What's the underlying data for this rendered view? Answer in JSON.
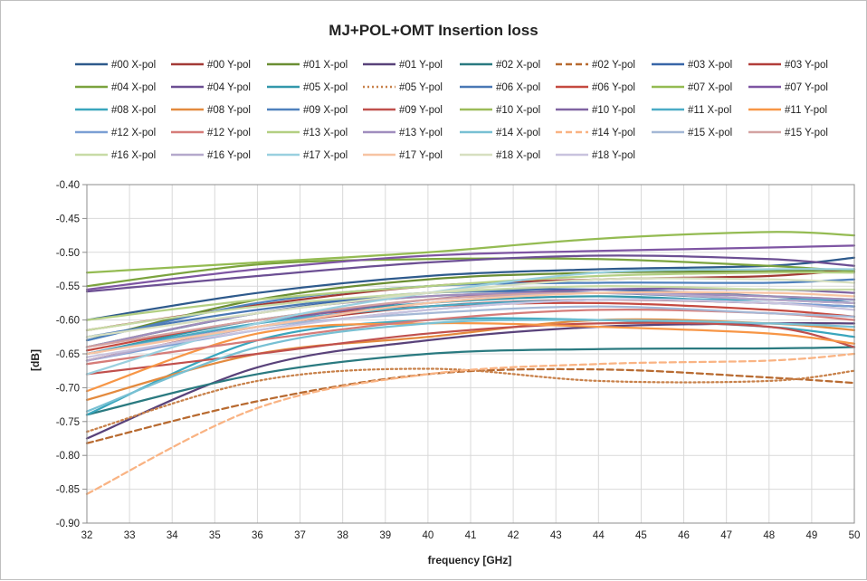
{
  "chart_data": {
    "type": "line",
    "title": "MJ+POL+OMT  Insertion loss",
    "xlabel": "frequency [GHz]",
    "ylabel": "[dB]",
    "xlim": [
      32,
      50
    ],
    "ylim": [
      -0.9,
      -0.4
    ],
    "x_ticks": [
      32,
      33,
      34,
      35,
      36,
      37,
      38,
      39,
      40,
      41,
      42,
      43,
      44,
      45,
      46,
      47,
      48,
      49,
      50
    ],
    "y_ticks": [
      -0.9,
      -0.85,
      -0.8,
      -0.75,
      -0.7,
      -0.65,
      -0.6,
      -0.55,
      -0.5,
      -0.45,
      -0.4
    ],
    "x_tick_labels": [
      "32",
      "33",
      "34",
      "35",
      "36",
      "37",
      "38",
      "39",
      "40",
      "41",
      "42",
      "43",
      "44",
      "45",
      "46",
      "47",
      "48",
      "49",
      "50"
    ],
    "y_tick_labels": [
      "-0.90",
      "-0.85",
      "-0.80",
      "-0.75",
      "-0.70",
      "-0.65",
      "-0.60",
      "-0.55",
      "-0.50",
      "-0.45",
      "-0.40"
    ],
    "grid": true,
    "legend_position": "top",
    "x": [
      32,
      36,
      40,
      44,
      48,
      50
    ],
    "series": [
      {
        "name": "#00 X-pol",
        "color": "#2E5A8C",
        "dash": "solid",
        "values": [
          -0.6,
          -0.56,
          -0.535,
          -0.525,
          -0.52,
          -0.508
        ]
      },
      {
        "name": "#00 Y-pol",
        "color": "#A33A36",
        "dash": "solid",
        "values": [
          -0.615,
          -0.578,
          -0.55,
          -0.54,
          -0.535,
          -0.525
        ]
      },
      {
        "name": "#01 X-pol",
        "color": "#6B8E33",
        "dash": "solid",
        "values": [
          -0.63,
          -0.57,
          -0.54,
          -0.53,
          -0.528,
          -0.525
        ]
      },
      {
        "name": "#01 Y-pol",
        "color": "#59427A",
        "dash": "solid",
        "values": [
          -0.775,
          -0.67,
          -0.63,
          -0.61,
          -0.605,
          -0.605
        ]
      },
      {
        "name": "#02 X-pol",
        "color": "#2A7A80",
        "dash": "solid",
        "values": [
          -0.74,
          -0.68,
          -0.65,
          -0.643,
          -0.642,
          -0.64
        ]
      },
      {
        "name": "#02 Y-pol",
        "color": "#B86A30",
        "dash": "dash",
        "values": [
          -0.782,
          -0.72,
          -0.68,
          -0.673,
          -0.685,
          -0.693
        ]
      },
      {
        "name": "#03 X-pol",
        "color": "#3866A8",
        "dash": "solid",
        "values": [
          -0.64,
          -0.59,
          -0.56,
          -0.555,
          -0.565,
          -0.575
        ]
      },
      {
        "name": "#03 Y-pol",
        "color": "#B23E3A",
        "dash": "solid",
        "values": [
          -0.66,
          -0.61,
          -0.58,
          -0.57,
          -0.575,
          -0.58
        ]
      },
      {
        "name": "#04 X-pol",
        "color": "#7BA33E",
        "dash": "solid",
        "values": [
          -0.55,
          -0.518,
          -0.51,
          -0.51,
          -0.52,
          -0.528
        ]
      },
      {
        "name": "#04 Y-pol",
        "color": "#6C4F93",
        "dash": "solid",
        "values": [
          -0.558,
          -0.535,
          -0.515,
          -0.505,
          -0.51,
          -0.52
        ]
      },
      {
        "name": "#05 X-pol",
        "color": "#3398AB",
        "dash": "solid",
        "values": [
          -0.65,
          -0.6,
          -0.575,
          -0.565,
          -0.575,
          -0.58
        ]
      },
      {
        "name": "#05 Y-pol",
        "color": "#C8814A",
        "dash": "dot",
        "values": [
          -0.765,
          -0.69,
          -0.672,
          -0.69,
          -0.69,
          -0.675
        ]
      },
      {
        "name": "#06 X-pol",
        "color": "#4A78B5",
        "dash": "solid",
        "values": [
          -0.625,
          -0.585,
          -0.56,
          -0.56,
          -0.57,
          -0.575
        ]
      },
      {
        "name": "#06 Y-pol",
        "color": "#C54A40",
        "dash": "solid",
        "values": [
          -0.645,
          -0.6,
          -0.58,
          -0.575,
          -0.585,
          -0.595
        ]
      },
      {
        "name": "#07 X-pol",
        "color": "#94BB52",
        "dash": "solid",
        "values": [
          -0.53,
          -0.515,
          -0.5,
          -0.48,
          -0.47,
          -0.475
        ]
      },
      {
        "name": "#07 Y-pol",
        "color": "#7E55A3",
        "dash": "solid",
        "values": [
          -0.555,
          -0.525,
          -0.505,
          -0.498,
          -0.493,
          -0.49
        ]
      },
      {
        "name": "#08 X-pol",
        "color": "#3AA6BD",
        "dash": "solid",
        "values": [
          -0.74,
          -0.63,
          -0.6,
          -0.6,
          -0.61,
          -0.625
        ]
      },
      {
        "name": "#08 Y-pol",
        "color": "#E38A3E",
        "dash": "solid",
        "values": [
          -0.718,
          -0.65,
          -0.625,
          -0.6,
          -0.605,
          -0.615
        ]
      },
      {
        "name": "#09 X-pol",
        "color": "#4F81BD",
        "dash": "solid",
        "values": [
          -0.63,
          -0.575,
          -0.55,
          -0.545,
          -0.545,
          -0.54
        ]
      },
      {
        "name": "#09 Y-pol",
        "color": "#C0504D",
        "dash": "solid",
        "values": [
          -0.68,
          -0.65,
          -0.62,
          -0.605,
          -0.61,
          -0.64
        ]
      },
      {
        "name": "#10 X-pol",
        "color": "#9BBB59",
        "dash": "solid",
        "values": [
          -0.64,
          -0.59,
          -0.565,
          -0.56,
          -0.565,
          -0.57
        ]
      },
      {
        "name": "#10 Y-pol",
        "color": "#8064A2",
        "dash": "solid",
        "values": [
          -0.65,
          -0.605,
          -0.57,
          -0.555,
          -0.555,
          -0.56
        ]
      },
      {
        "name": "#11 X-pol",
        "color": "#4BACC6",
        "dash": "solid",
        "values": [
          -0.65,
          -0.605,
          -0.58,
          -0.57,
          -0.57,
          -0.57
        ]
      },
      {
        "name": "#11 Y-pol",
        "color": "#F79646",
        "dash": "solid",
        "values": [
          -0.705,
          -0.62,
          -0.605,
          -0.61,
          -0.62,
          -0.635
        ]
      },
      {
        "name": "#12 X-pol",
        "color": "#7B9FD4",
        "dash": "solid",
        "values": [
          -0.66,
          -0.615,
          -0.585,
          -0.57,
          -0.575,
          -0.58
        ]
      },
      {
        "name": "#12 Y-pol",
        "color": "#D67C79",
        "dash": "solid",
        "values": [
          -0.665,
          -0.63,
          -0.6,
          -0.585,
          -0.59,
          -0.6
        ]
      },
      {
        "name": "#13 X-pol",
        "color": "#B3CF82",
        "dash": "solid",
        "values": [
          -0.6,
          -0.57,
          -0.55,
          -0.535,
          -0.53,
          -0.53
        ]
      },
      {
        "name": "#13 Y-pol",
        "color": "#A08DBE",
        "dash": "solid",
        "values": [
          -0.64,
          -0.59,
          -0.565,
          -0.56,
          -0.565,
          -0.57
        ]
      },
      {
        "name": "#14 X-pol",
        "color": "#78C0D3",
        "dash": "solid",
        "values": [
          -0.735,
          -0.64,
          -0.605,
          -0.6,
          -0.605,
          -0.61
        ]
      },
      {
        "name": "#14 Y-pol",
        "color": "#F9B383",
        "dash": "dash",
        "values": [
          -0.857,
          -0.73,
          -0.68,
          -0.665,
          -0.66,
          -0.65
        ]
      },
      {
        "name": "#15 X-pol",
        "color": "#A4B8D6",
        "dash": "solid",
        "values": [
          -0.65,
          -0.61,
          -0.59,
          -0.58,
          -0.59,
          -0.595
        ]
      },
      {
        "name": "#15 Y-pol",
        "color": "#D4A3A2",
        "dash": "solid",
        "values": [
          -0.64,
          -0.6,
          -0.57,
          -0.56,
          -0.57,
          -0.575
        ]
      },
      {
        "name": "#16 X-pol",
        "color": "#C8DBA6",
        "dash": "solid",
        "values": [
          -0.615,
          -0.58,
          -0.56,
          -0.55,
          -0.555,
          -0.555
        ]
      },
      {
        "name": "#16 Y-pol",
        "color": "#B5A9CC",
        "dash": "solid",
        "values": [
          -0.66,
          -0.61,
          -0.575,
          -0.56,
          -0.57,
          -0.575
        ]
      },
      {
        "name": "#17 X-pol",
        "color": "#9AD0DF",
        "dash": "solid",
        "values": [
          -0.68,
          -0.605,
          -0.56,
          -0.53,
          -0.525,
          -0.525
        ]
      },
      {
        "name": "#17 Y-pol",
        "color": "#F7C4A3",
        "dash": "solid",
        "values": [
          -0.65,
          -0.61,
          -0.575,
          -0.56,
          -0.56,
          -0.565
        ]
      },
      {
        "name": "#18 X-pol",
        "color": "#D7DFC0",
        "dash": "solid",
        "values": [
          -0.625,
          -0.59,
          -0.56,
          -0.54,
          -0.54,
          -0.545
        ]
      },
      {
        "name": "#18 Y-pol",
        "color": "#C9C3DE",
        "dash": "solid",
        "values": [
          -0.655,
          -0.615,
          -0.585,
          -0.57,
          -0.575,
          -0.585
        ]
      }
    ]
  }
}
